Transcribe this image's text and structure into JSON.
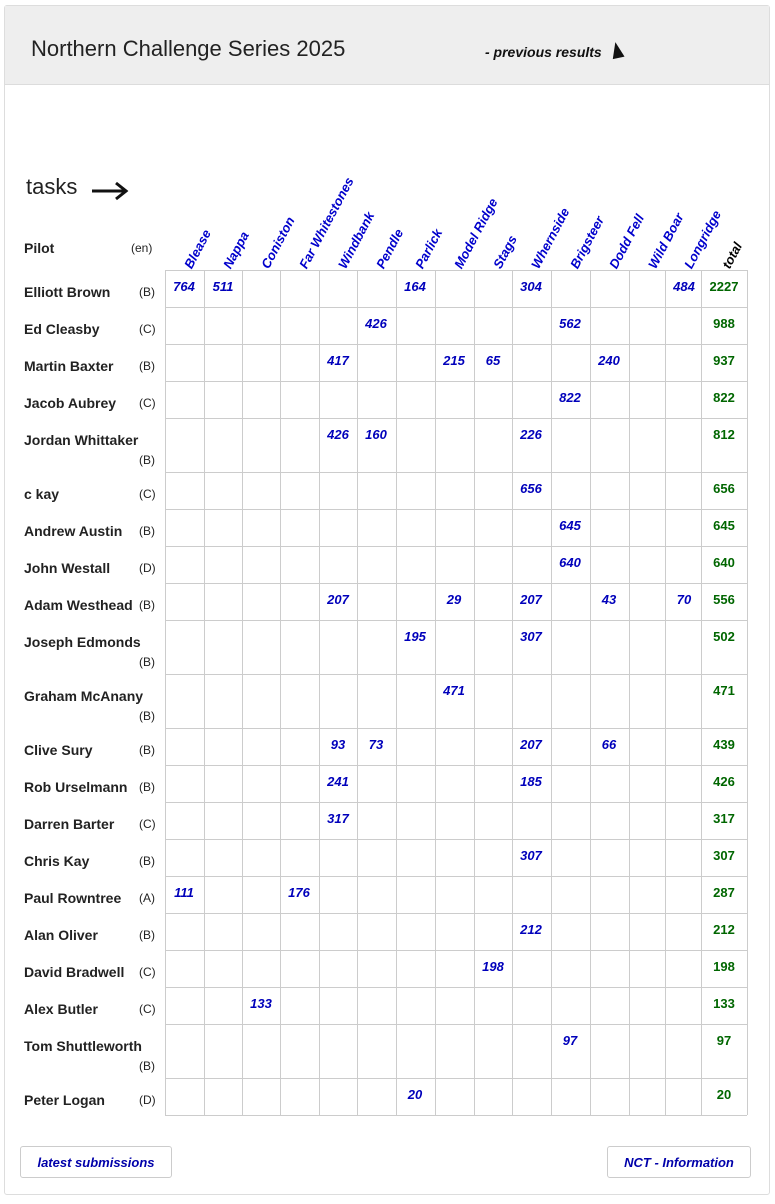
{
  "header": {
    "title": "Northern Challenge Series 2025",
    "previous_results": "- previous results"
  },
  "table": {
    "tasks_label": "tasks",
    "pilot_header": "Pilot",
    "class_header": "(en)",
    "columns": [
      "Blease",
      "Nappa",
      "Coniston",
      "Far Whitestones",
      "Windbank",
      "Pendle",
      "Parlick",
      "Model Ridge",
      "Stags",
      "Whernside",
      "Brigsteer",
      "Dodd Fell",
      "Wild Boar",
      "Longridge"
    ],
    "total_header": "total",
    "rows": [
      {
        "name": "Elliott Brown",
        "cls": "(B)",
        "scores": [
          "764",
          "511",
          "",
          "",
          "",
          "",
          "164",
          "",
          "",
          "304",
          "",
          "",
          "",
          "484"
        ],
        "total": "2227",
        "wrap": false
      },
      {
        "name": "Ed Cleasby",
        "cls": "(C)",
        "scores": [
          "",
          "",
          "",
          "",
          "",
          "426",
          "",
          "",
          "",
          "",
          "562",
          "",
          "",
          ""
        ],
        "total": "988",
        "wrap": false
      },
      {
        "name": "Martin Baxter",
        "cls": "(B)",
        "scores": [
          "",
          "",
          "",
          "",
          "417",
          "",
          "",
          "215",
          "65",
          "",
          "",
          "240",
          "",
          ""
        ],
        "total": "937",
        "wrap": false
      },
      {
        "name": "Jacob Aubrey",
        "cls": "(C)",
        "scores": [
          "",
          "",
          "",
          "",
          "",
          "",
          "",
          "",
          "",
          "",
          "822",
          "",
          "",
          ""
        ],
        "total": "822",
        "wrap": false
      },
      {
        "name": "Jordan Whittaker",
        "cls": "(B)",
        "scores": [
          "",
          "",
          "",
          "",
          "426",
          "160",
          "",
          "",
          "",
          "226",
          "",
          "",
          "",
          ""
        ],
        "total": "812",
        "wrap": true
      },
      {
        "name": "c kay",
        "cls": "(C)",
        "scores": [
          "",
          "",
          "",
          "",
          "",
          "",
          "",
          "",
          "",
          "656",
          "",
          "",
          "",
          ""
        ],
        "total": "656",
        "wrap": false
      },
      {
        "name": "Andrew Austin",
        "cls": "(B)",
        "scores": [
          "",
          "",
          "",
          "",
          "",
          "",
          "",
          "",
          "",
          "",
          "645",
          "",
          "",
          ""
        ],
        "total": "645",
        "wrap": false
      },
      {
        "name": "John Westall",
        "cls": "(D)",
        "scores": [
          "",
          "",
          "",
          "",
          "",
          "",
          "",
          "",
          "",
          "",
          "640",
          "",
          "",
          ""
        ],
        "total": "640",
        "wrap": false
      },
      {
        "name": "Adam Westhead",
        "cls": "(B)",
        "scores": [
          "",
          "",
          "",
          "",
          "207",
          "",
          "",
          "29",
          "",
          "207",
          "",
          "43",
          "",
          "70"
        ],
        "total": "556",
        "wrap": false
      },
      {
        "name": "Joseph Edmonds",
        "cls": "(B)",
        "scores": [
          "",
          "",
          "",
          "",
          "",
          "",
          "195",
          "",
          "",
          "307",
          "",
          "",
          "",
          ""
        ],
        "total": "502",
        "wrap": true
      },
      {
        "name": "Graham McAnany",
        "cls": "(B)",
        "scores": [
          "",
          "",
          "",
          "",
          "",
          "",
          "",
          "471",
          "",
          "",
          "",
          "",
          "",
          ""
        ],
        "total": "471",
        "wrap": true
      },
      {
        "name": "Clive Sury",
        "cls": "(B)",
        "scores": [
          "",
          "",
          "",
          "",
          "93",
          "73",
          "",
          "",
          "",
          "207",
          "",
          "66",
          "",
          ""
        ],
        "total": "439",
        "wrap": false
      },
      {
        "name": "Rob Urselmann",
        "cls": "(B)",
        "scores": [
          "",
          "",
          "",
          "",
          "241",
          "",
          "",
          "",
          "",
          "185",
          "",
          "",
          "",
          ""
        ],
        "total": "426",
        "wrap": false
      },
      {
        "name": "Darren Barter",
        "cls": "(C)",
        "scores": [
          "",
          "",
          "",
          "",
          "317",
          "",
          "",
          "",
          "",
          "",
          "",
          "",
          "",
          ""
        ],
        "total": "317",
        "wrap": false
      },
      {
        "name": "Chris Kay",
        "cls": "(B)",
        "scores": [
          "",
          "",
          "",
          "",
          "",
          "",
          "",
          "",
          "",
          "307",
          "",
          "",
          "",
          ""
        ],
        "total": "307",
        "wrap": false
      },
      {
        "name": "Paul Rowntree",
        "cls": "(A)",
        "scores": [
          "111",
          "",
          "",
          "176",
          "",
          "",
          "",
          "",
          "",
          "",
          "",
          "",
          "",
          ""
        ],
        "total": "287",
        "wrap": false
      },
      {
        "name": "Alan Oliver",
        "cls": "(B)",
        "scores": [
          "",
          "",
          "",
          "",
          "",
          "",
          "",
          "",
          "",
          "212",
          "",
          "",
          "",
          ""
        ],
        "total": "212",
        "wrap": false
      },
      {
        "name": "David Bradwell",
        "cls": "(C)",
        "scores": [
          "",
          "",
          "",
          "",
          "",
          "",
          "",
          "",
          "198",
          "",
          "",
          "",
          "",
          ""
        ],
        "total": "198",
        "wrap": false
      },
      {
        "name": "Alex Butler",
        "cls": "(C)",
        "scores": [
          "",
          "",
          "133",
          "",
          "",
          "",
          "",
          "",
          "",
          "",
          "",
          "",
          "",
          ""
        ],
        "total": "133",
        "wrap": false
      },
      {
        "name": "Tom Shuttleworth",
        "cls": "(B)",
        "scores": [
          "",
          "",
          "",
          "",
          "",
          "",
          "",
          "",
          "",
          "",
          "97",
          "",
          "",
          ""
        ],
        "total": "97",
        "wrap": true
      },
      {
        "name": "Peter Logan",
        "cls": "(D)",
        "scores": [
          "",
          "",
          "",
          "",
          "",
          "",
          "20",
          "",
          "",
          "",
          "",
          "",
          "",
          ""
        ],
        "total": "20",
        "wrap": false
      }
    ]
  },
  "footer": {
    "latest_submissions": "latest submissions",
    "nct_information": "NCT - Information"
  }
}
